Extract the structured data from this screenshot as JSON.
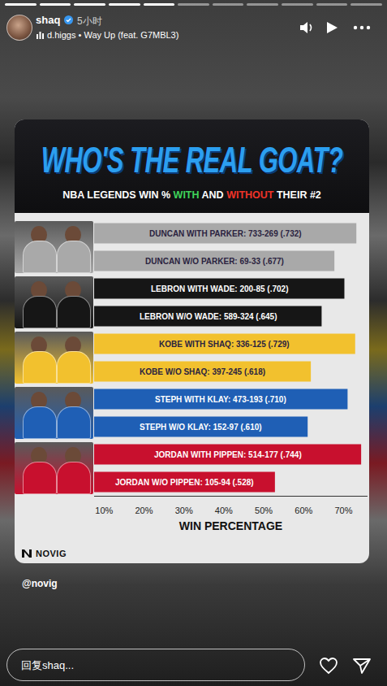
{
  "story": {
    "user": "shaq",
    "time": "5小时",
    "music": "d.higgs • Way Up (feat. G7MBL3)",
    "logo": "NOVIG",
    "mention": "@novig",
    "reply_placeholder": "回复shaq..."
  },
  "chart_data": {
    "type": "bar",
    "orientation": "horizontal",
    "title": "WHO'S THE REAL GOAT?",
    "subtitle": "NBA LEGENDS WIN % WITH AND WITHOUT THEIR #2",
    "xlabel": "WIN PERCENTAGE",
    "categories": [
      "DUNCAN WITH PARKER: 733-269 (.732)",
      "DUNCAN W/O PARKER: 69-33 (.677)",
      "LEBRON WITH WADE: 200-85 (.702)",
      "LEBRON W/O WADE: 589-324 (.645)",
      "KOBE WITH SHAQ: 336-125 (.729)",
      "KOBE W/O SHAQ: 397-245 (.618)",
      "STEPH WITH KLAY: 473-193 (.710)",
      "STEPH W/O KLAY: 152-97 (.610)",
      "JORDAN WITH PIPPEN: 514-177 (.744)",
      "JORDAN W/O PIPPEN: 105-94 (.528)"
    ],
    "values": [
      73.2,
      67.7,
      70.2,
      64.5,
      72.9,
      61.8,
      71.0,
      61.0,
      74.4,
      52.8
    ],
    "colors": [
      "#a9a9a9",
      "#a9a9a9",
      "#161616",
      "#161616",
      "#f2c12e",
      "#f2c12e",
      "#1f5fb5",
      "#1f5fb5",
      "#c8102e",
      "#c8102e"
    ],
    "xlim": [
      7.5,
      76
    ],
    "xticks": [
      {
        "value": 10,
        "label": "10%"
      },
      {
        "value": 20,
        "label": "20%"
      },
      {
        "value": 30,
        "label": "30%"
      },
      {
        "value": 40,
        "label": "40%"
      },
      {
        "value": 50,
        "label": "50%"
      },
      {
        "value": 60,
        "label": "60%"
      },
      {
        "value": 70,
        "label": "70%"
      }
    ],
    "grid": false,
    "tick_labels": "x",
    "data_labels": false
  }
}
